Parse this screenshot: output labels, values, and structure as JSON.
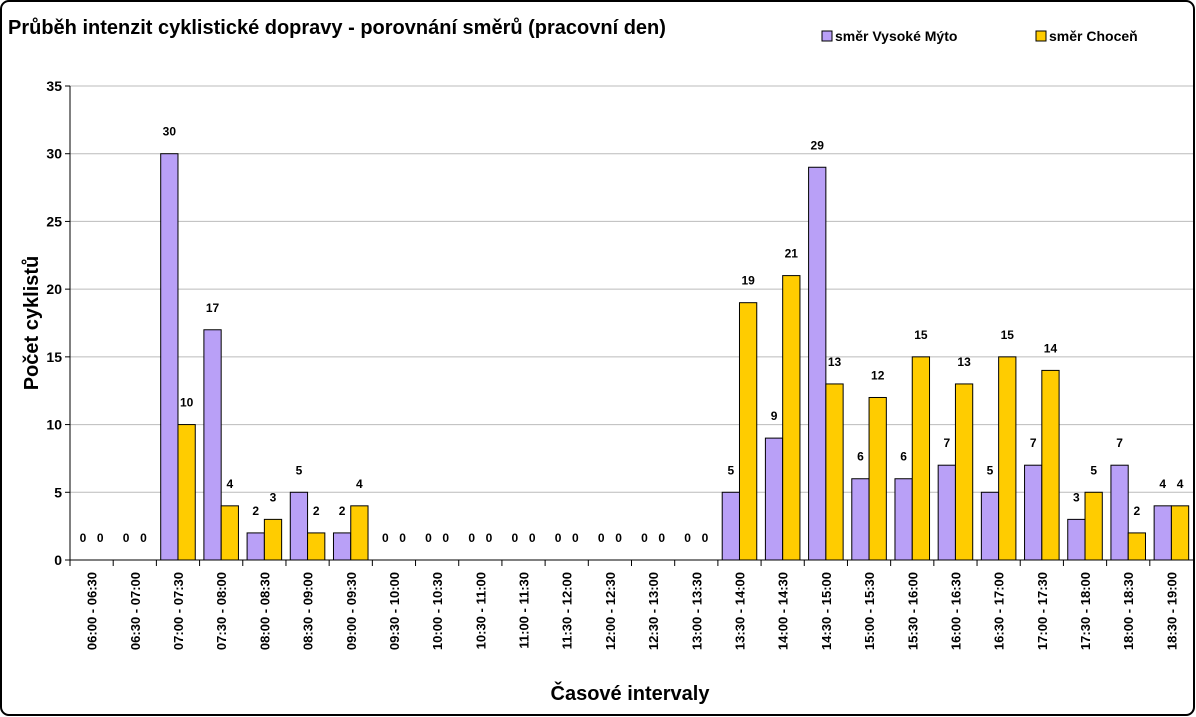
{
  "chart_data": {
    "type": "bar",
    "title": "Průběh intenzit cyklistické dopravy - porovnání směrů (pracovní den)",
    "x_label": "Časové intervaly",
    "y_label": "Počet cyklistů",
    "categories": [
      "06:00 - 06:30",
      "06:30 - 07:00",
      "07:00 - 07:30",
      "07:30 - 08:00",
      "08:00 - 08:30",
      "08:30 - 09:00",
      "09:00 - 09:30",
      "09:30 - 10:00",
      "10:00 - 10:30",
      "10:30 - 11:00",
      "11:00 - 11:30",
      "11:30 - 12:00",
      "12:00 - 12:30",
      "12:30 - 13:00",
      "13:00 - 13:30",
      "13:30 - 14:00",
      "14:00 - 14:30",
      "14:30 - 15:00",
      "15:00 - 15:30",
      "15:30 - 16:00",
      "16:00 - 16:30",
      "16:30 - 17:00",
      "17:00 - 17:30",
      "17:30 - 18:00",
      "18:00 - 18:30",
      "18:30 - 19:00"
    ],
    "series": [
      {
        "name": "směr Vysoké Mýto",
        "color": "#b9a0f7",
        "values": [
          0,
          0,
          30,
          17,
          2,
          5,
          2,
          0,
          0,
          0,
          0,
          0,
          0,
          0,
          0,
          5,
          9,
          29,
          6,
          6,
          7,
          5,
          7,
          3,
          7,
          4
        ]
      },
      {
        "name": "směr Choceň",
        "color": "#ffcc00",
        "values": [
          0,
          0,
          10,
          4,
          3,
          2,
          4,
          0,
          0,
          0,
          0,
          0,
          0,
          0,
          0,
          19,
          21,
          13,
          12,
          15,
          13,
          15,
          14,
          5,
          2,
          4
        ]
      }
    ],
    "ylim": [
      0,
      35
    ],
    "yticks": [
      0,
      5,
      10,
      15,
      20,
      25,
      30,
      35
    ],
    "grid": true,
    "legend": "top-right"
  }
}
